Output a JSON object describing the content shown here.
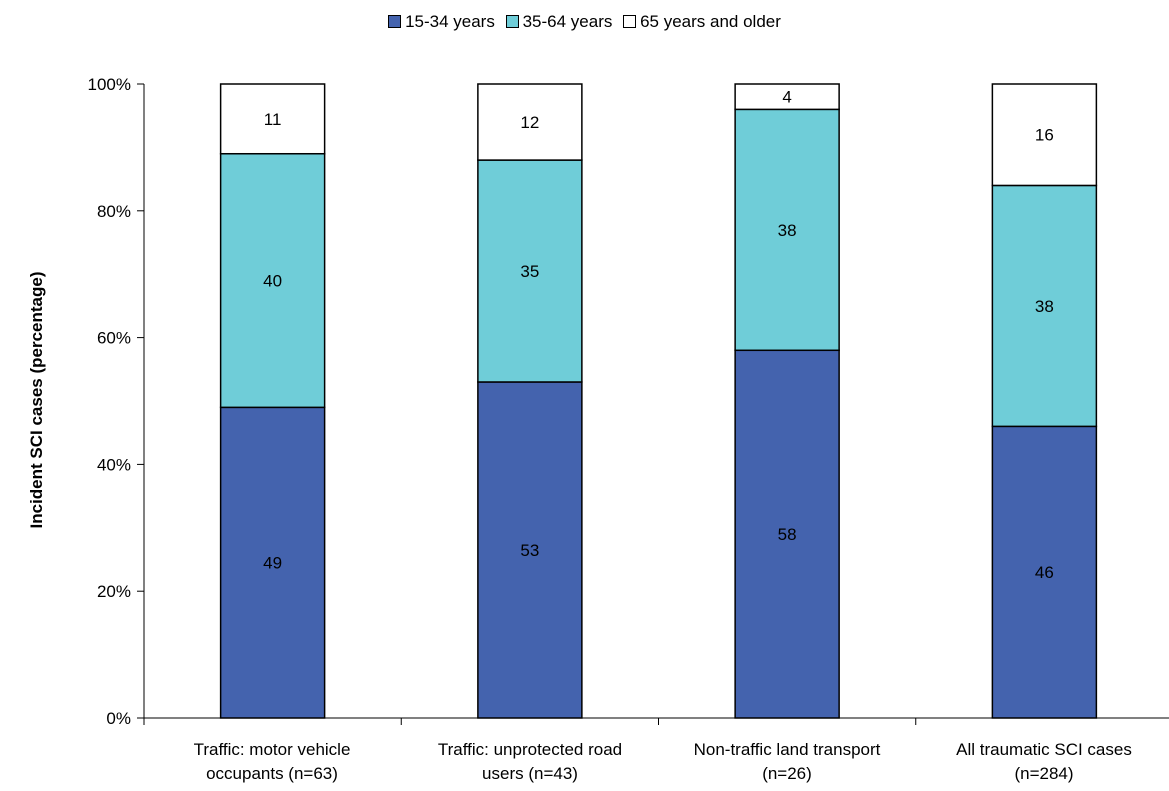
{
  "chart_data": {
    "type": "bar",
    "stacked": true,
    "percent": true,
    "categories": [
      [
        "Traffic: motor vehicle",
        "occupants (n=63)"
      ],
      [
        "Traffic: unprotected road",
        "users (n=43)"
      ],
      [
        "Non-traffic land transport",
        "(n=26)"
      ],
      [
        "All traumatic SCI cases",
        "(n=284)"
      ]
    ],
    "series": [
      {
        "name": "15-34 years",
        "values": [
          49,
          53,
          58,
          46
        ],
        "color": "#4463AE"
      },
      {
        "name": "35-64 years",
        "values": [
          40,
          35,
          38,
          38
        ],
        "color": "#6FCDD8"
      },
      {
        "name": "65 years and older",
        "values": [
          11,
          12,
          4,
          16
        ],
        "color": "#FFFFFF"
      }
    ],
    "ylabel": "Incident SCI cases (percentage)",
    "yticks": [
      "0%",
      "20%",
      "40%",
      "60%",
      "80%",
      "100%"
    ],
    "ylim": [
      0,
      100
    ],
    "legend_position": "top",
    "grid": false
  }
}
